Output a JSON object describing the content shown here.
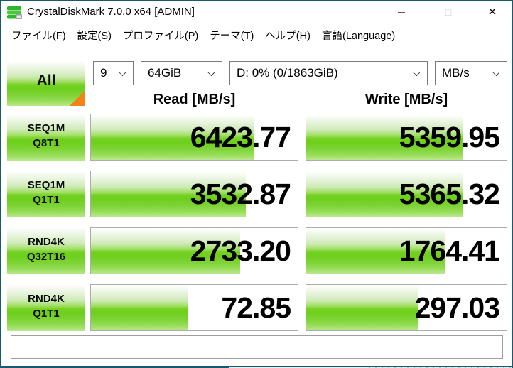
{
  "window": {
    "title": "CrystalDiskMark 7.0.0 x64 [ADMIN]",
    "controls": {
      "minimize_glyph": "─",
      "maximize_glyph": "□",
      "close_glyph": "×"
    }
  },
  "menu": {
    "items": [
      {
        "label": "ファイル(F)"
      },
      {
        "label": "設定(S)"
      },
      {
        "label": "プロファイル(P)"
      },
      {
        "label": "テーマ(T)"
      },
      {
        "label": "ヘルプ(H)"
      },
      {
        "label": "言語(Language)"
      }
    ]
  },
  "toolbar": {
    "all_label": "All",
    "test_count": "9",
    "test_size": "64GiB",
    "target_drive": "D: 0% (0/1863GiB)",
    "unit": "MB/s"
  },
  "table": {
    "read_header": "Read [MB/s]",
    "write_header": "Write [MB/s]",
    "rows": [
      {
        "test": "SEQ1M",
        "qt": "Q8T1",
        "read": "6423.77",
        "write": "5359.95",
        "read_fill": 79,
        "write_fill": 78
      },
      {
        "test": "SEQ1M",
        "qt": "Q1T1",
        "read": "3532.87",
        "write": "5365.32",
        "read_fill": 75,
        "write_fill": 78
      },
      {
        "test": "RND4K",
        "qt": "Q32T16",
        "read": "2733.20",
        "write": "1764.41",
        "read_fill": 72,
        "write_fill": 69
      },
      {
        "test": "RND4K",
        "qt": "Q1T1",
        "read": "72.85",
        "write": "297.03",
        "read_fill": 47,
        "write_fill": 56
      }
    ]
  },
  "comment": {
    "value": ""
  },
  "colors": {
    "accent_green": "#6ecf1d",
    "pale_green": "#cfeab8",
    "corner_orange": "#f08419",
    "window_border": "#17596f"
  }
}
